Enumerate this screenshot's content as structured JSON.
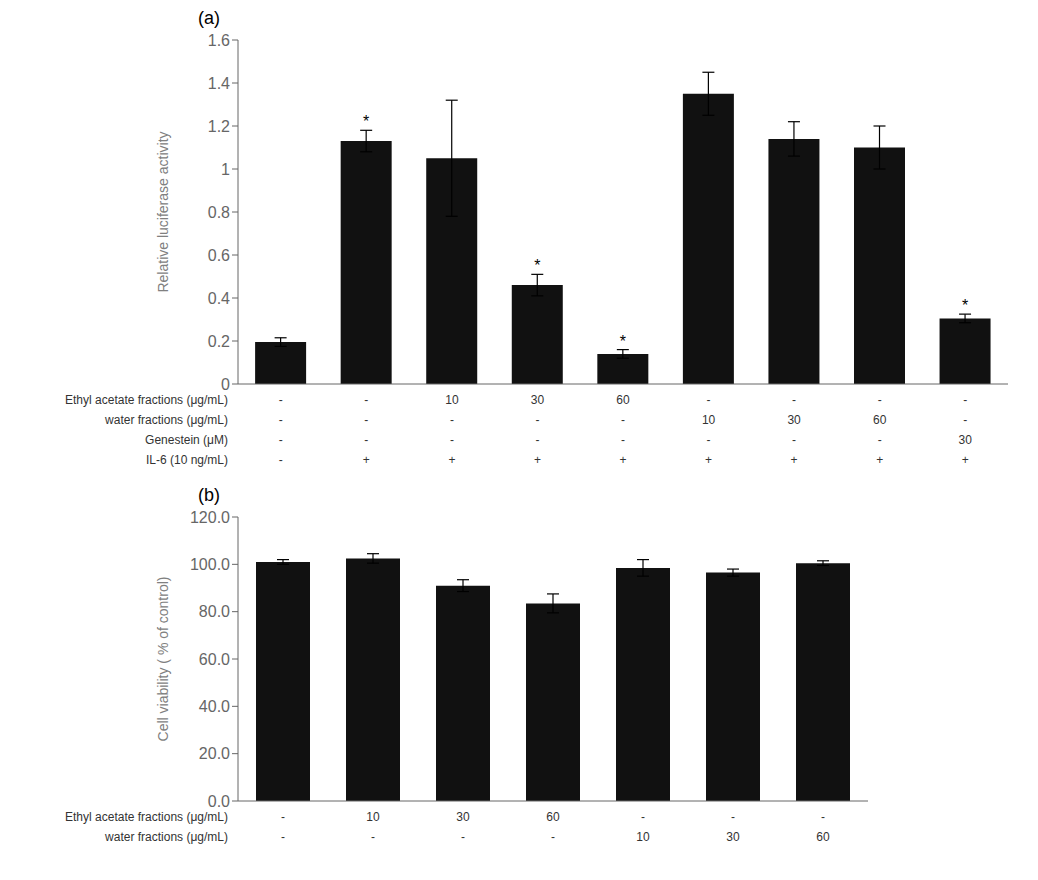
{
  "chart_data": [
    {
      "type": "bar",
      "title": "(a)",
      "ylabel": "Relative luciferase activity",
      "values": [
        0.195,
        1.13,
        1.05,
        0.46,
        0.14,
        1.35,
        1.14,
        1.1,
        0.305
      ],
      "errors": [
        0.02,
        0.05,
        0.27,
        0.05,
        0.02,
        0.1,
        0.08,
        0.1,
        0.02
      ],
      "annotations": [
        null,
        "*",
        null,
        "*",
        "*",
        null,
        null,
        null,
        "*"
      ],
      "color": "#111111",
      "ylim": [
        0,
        1.6
      ],
      "yticks": [
        0,
        0.2,
        0.4,
        0.6,
        0.8,
        1,
        1.2,
        1.4,
        1.6
      ],
      "table": {
        "row_labels": [
          "Ethyl acetate fractions (μg/mL)",
          "water fractions (μg/mL)",
          "Genestein (μM)",
          "IL-6 (10 ng/mL)"
        ],
        "rows": [
          [
            "-",
            "-",
            "10",
            "30",
            "60",
            "-",
            "-",
            "-",
            "-"
          ],
          [
            "-",
            "-",
            "-",
            "-",
            "-",
            "10",
            "30",
            "60",
            "-"
          ],
          [
            "-",
            "-",
            "-",
            "-",
            "-",
            "-",
            "-",
            "-",
            "30"
          ],
          [
            "-",
            "+",
            "+",
            "+",
            "+",
            "+",
            "+",
            "+",
            "+"
          ]
        ]
      }
    },
    {
      "type": "bar",
      "title": "(b)",
      "ylabel": "Cell viability ( % of control)",
      "values": [
        101.0,
        102.5,
        91.0,
        83.5,
        98.5,
        96.5,
        100.5
      ],
      "errors": [
        1.0,
        2.0,
        2.5,
        4.0,
        3.5,
        1.5,
        1.0
      ],
      "color": "#111111",
      "ylim": [
        0,
        120
      ],
      "yticks": [
        {
          "value": 0,
          "label": "0.0"
        },
        {
          "value": 20,
          "label": "20.0"
        },
        {
          "value": 40,
          "label": "40.0"
        },
        {
          "value": 60,
          "label": "60.0"
        },
        {
          "value": 80,
          "label": "80.0"
        },
        {
          "value": 100,
          "label": "100.0"
        },
        {
          "value": 120,
          "label": "120.0"
        }
      ],
      "table": {
        "row_labels": [
          "Ethyl acetate fractions (μg/mL)",
          "water fractions (μg/mL)"
        ],
        "rows": [
          [
            "-",
            "10",
            "30",
            "60",
            "-",
            "-",
            "-"
          ],
          [
            "-",
            "-",
            "-",
            "-",
            "10",
            "30",
            "60"
          ]
        ]
      }
    }
  ]
}
